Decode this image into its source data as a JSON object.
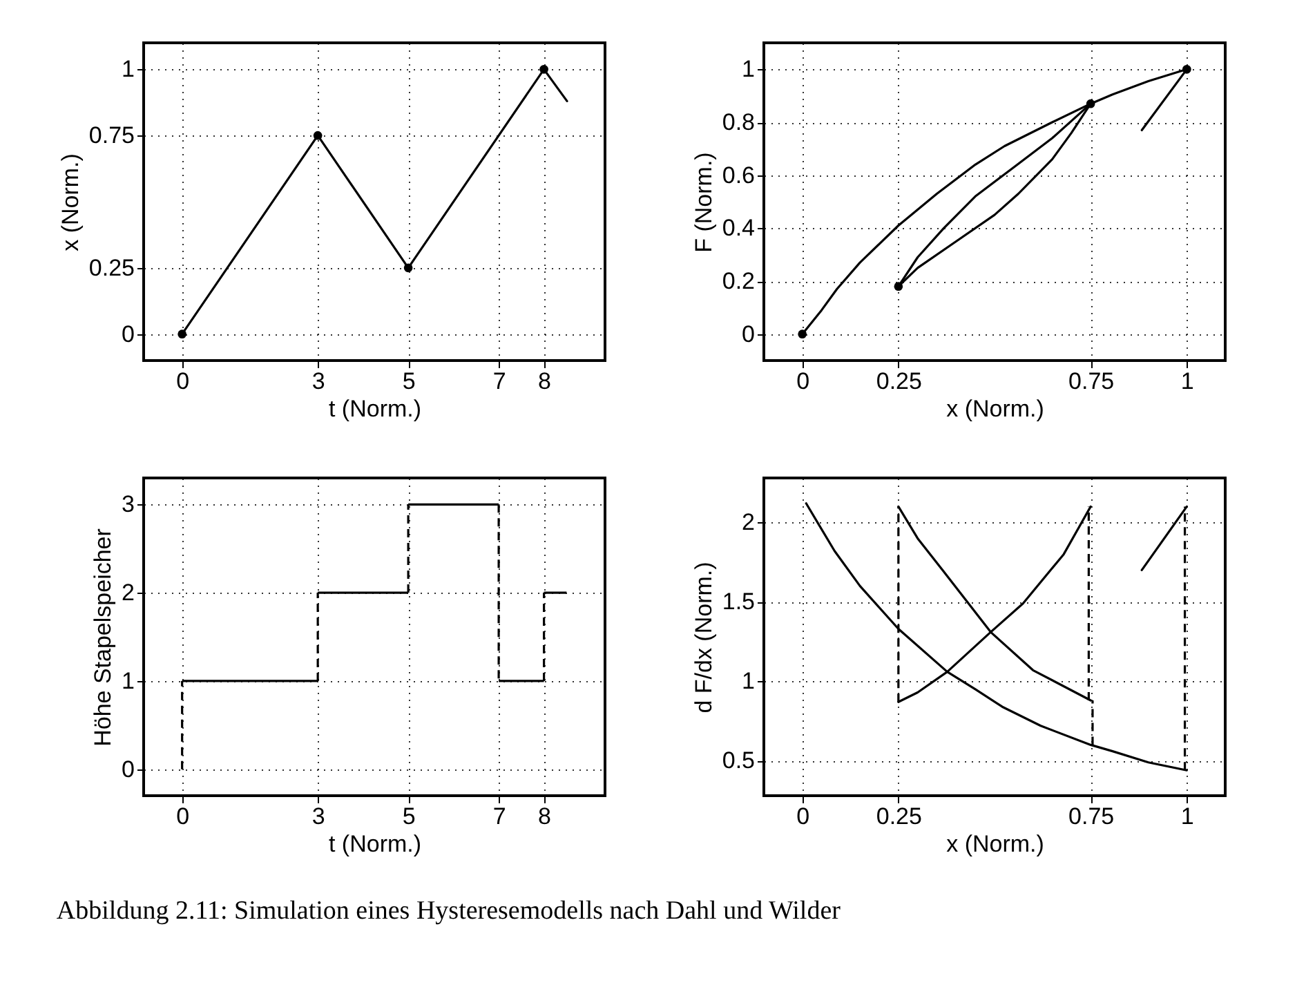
{
  "chart_data": [
    {
      "type": "line",
      "xlabel": "t (Norm.)",
      "ylabel": "x (Norm.)",
      "xlim": [
        -0.85,
        9.35
      ],
      "ylim": [
        -0.1,
        1.1
      ],
      "xticks": [
        0,
        3,
        5,
        7,
        8
      ],
      "yticks": [
        0,
        0.25,
        0.75,
        1
      ],
      "grid": true,
      "series": [
        {
          "color": "#000000",
          "x": [
            0,
            3,
            5,
            8,
            8.51
          ],
          "values": [
            0,
            0.75,
            0.25,
            1,
            0.88
          ]
        },
        {
          "type": "scatter",
          "marker": "circle",
          "color": "#000000",
          "x": [
            0,
            3,
            5,
            8
          ],
          "values": [
            0,
            0.75,
            0.25,
            1
          ]
        }
      ]
    },
    {
      "type": "line",
      "xlabel": "x (Norm.)",
      "ylabel": "F (Norm.)",
      "xlim": [
        -0.1,
        1.1
      ],
      "ylim": [
        -0.1,
        1.1
      ],
      "xticks": [
        0,
        0.25,
        0.75,
        1
      ],
      "yticks": [
        0,
        0.2,
        0.4,
        0.6,
        0.8,
        1
      ],
      "grid": true,
      "series": [
        {
          "color": "#000000",
          "x": [
            0,
            0.05,
            0.09,
            0.15,
            0.25,
            0.35,
            0.45,
            0.526,
            0.65,
            0.75,
            0.807,
            0.9,
            1
          ],
          "values": [
            0,
            0.09,
            0.17,
            0.27,
            0.41,
            0.53,
            0.64,
            0.71,
            0.8,
            0.87,
            0.905,
            0.955,
            1
          ]
        },
        {
          "color": "#000000",
          "x": [
            0.75,
            0.7,
            0.65,
            0.562,
            0.5,
            0.4,
            0.3,
            0.25
          ],
          "values": [
            0.87,
            0.76,
            0.66,
            0.53,
            0.45,
            0.35,
            0.25,
            0.18
          ]
        },
        {
          "color": "#000000",
          "x": [
            0.25,
            0.3,
            0.368,
            0.45,
            0.55,
            0.65,
            0.75
          ],
          "values": [
            0.18,
            0.29,
            0.4,
            0.52,
            0.63,
            0.74,
            0.87
          ]
        },
        {
          "color": "#000000",
          "x": [
            1,
            0.883
          ],
          "values": [
            1,
            0.77
          ]
        },
        {
          "type": "scatter",
          "marker": "circle",
          "color": "#000000",
          "x": [
            0,
            0.25,
            0.75,
            1
          ],
          "values": [
            0,
            0.18,
            0.87,
            1
          ]
        }
      ]
    },
    {
      "type": "step",
      "xlabel": "t (Norm.)",
      "ylabel": "Höhe Stapelspeicher",
      "xlim": [
        -0.85,
        9.35
      ],
      "ylim": [
        -0.3,
        3.3
      ],
      "xticks": [
        0,
        3,
        5,
        7,
        8
      ],
      "yticks": [
        0,
        1,
        2,
        3
      ],
      "grid": true,
      "series": [
        {
          "color": "#000000",
          "x": [
            0,
            0,
            3,
            5,
            7,
            8,
            8.5
          ],
          "values": [
            0,
            1,
            2,
            3,
            1,
            2,
            2
          ]
        }
      ]
    },
    {
      "type": "line",
      "xlabel": "x (Norm.)",
      "ylabel": "d F/dx (Norm.)",
      "xlim": [
        -0.1,
        1.1
      ],
      "ylim": [
        0.28,
        2.28
      ],
      "xticks": [
        0,
        0.25,
        0.75,
        1
      ],
      "yticks": [
        0.5,
        1,
        1.5,
        2
      ],
      "grid": true,
      "annotations": [
        "Abbildung 2.11: Simulation eines Hysteresemodells nach Dahl und Wilder"
      ],
      "series": [
        {
          "color": "#000000",
          "x": [
            0.01,
            0.084,
            0.15,
            0.25,
            0.377,
            0.45,
            0.52,
            0.62,
            0.75,
            0.807,
            0.9,
            1
          ],
          "values": [
            2.12,
            1.82,
            1.6,
            1.33,
            1.06,
            0.95,
            0.84,
            0.72,
            0.6,
            0.56,
            0.49,
            0.44
          ]
        },
        {
          "color": "#000000",
          "x": [
            0.75,
            0.68,
            0.574,
            0.49,
            0.377,
            0.3,
            0.25
          ],
          "values": [
            2.1,
            1.8,
            1.49,
            1.31,
            1.06,
            0.93,
            0.87
          ]
        },
        {
          "color": "#000000",
          "x": [
            0.25,
            0.3,
            0.365,
            0.49,
            0.6,
            0.75
          ],
          "values": [
            2.1,
            1.9,
            1.7,
            1.31,
            1.07,
            0.88
          ]
        },
        {
          "color": "#000000",
          "x": [
            1,
            0.883
          ],
          "values": [
            2.1,
            1.7
          ]
        },
        {
          "color": "#000000",
          "line_style": "dashed",
          "x": [
            0.745,
            0.745
          ],
          "values": [
            0.88,
            2.1
          ]
        },
        {
          "color": "#000000",
          "line_style": "dashed",
          "x": [
            0.755,
            0.755
          ],
          "values": [
            0.6,
            0.88
          ]
        },
        {
          "color": "#000000",
          "line_style": "dashed",
          "x": [
            0.25,
            0.25
          ],
          "values": [
            0.87,
            2.1
          ]
        },
        {
          "color": "#000000",
          "line_style": "dashed",
          "x": [
            0.995,
            0.995
          ],
          "values": [
            0.44,
            2.1
          ]
        }
      ]
    }
  ]
}
